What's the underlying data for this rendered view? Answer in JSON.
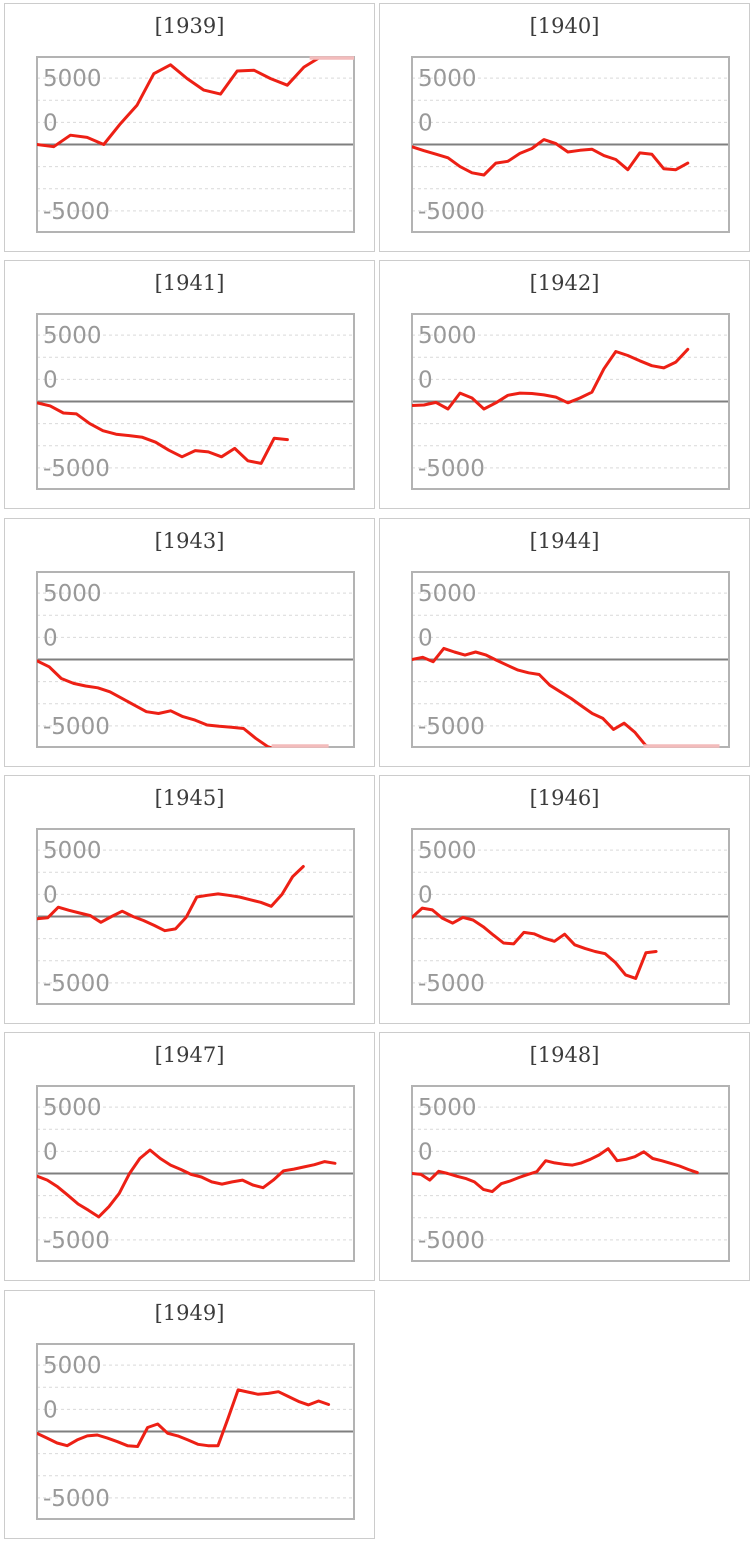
{
  "axis": {
    "tick_labels": [
      "5000",
      "0",
      "-5000"
    ],
    "range_top": 10000,
    "range_bottom": -10000,
    "grid_step": 2500,
    "zero_baseline": true
  },
  "colors": {
    "line": "#ed2015",
    "clipped_line": "#f3bcbc",
    "gridline": "#d9d9d9",
    "zero_line": "#7f7f7f",
    "plot_border": "#b3b3b3",
    "card_border": "#cccccc",
    "tick_label": "#999999",
    "title": "#3b3b3b",
    "background": "#ffffff"
  },
  "chart_data": [
    {
      "type": "line",
      "title": "[1939]",
      "end": 1.0,
      "clips": [
        [
          "top",
          0.86,
          1.0
        ]
      ],
      "values": [
        0,
        -250,
        1050,
        800,
        0,
        2350,
        4450,
        8000,
        9000,
        7450,
        6150,
        5700,
        8300,
        8400,
        7450,
        6700,
        8750,
        9900,
        10300,
        10300
      ]
    },
    {
      "type": "line",
      "title": "[1940]",
      "end": 0.87,
      "clips": [],
      "values": [
        -260,
        -700,
        -1100,
        -1500,
        -2500,
        -3200,
        -3450,
        -2100,
        -1900,
        -1000,
        -450,
        550,
        100,
        -850,
        -650,
        -530,
        -1250,
        -1700,
        -2850,
        -950,
        -1100,
        -2750,
        -2850,
        -2100
      ]
    },
    {
      "type": "line",
      "title": "[1941]",
      "end": 0.79,
      "clips": [],
      "values": [
        -150,
        -500,
        -1300,
        -1400,
        -2500,
        -3300,
        -3700,
        -3850,
        -4050,
        -4600,
        -5500,
        -6250,
        -5550,
        -5700,
        -6250,
        -5300,
        -6700,
        -7000,
        -4150,
        -4300
      ]
    },
    {
      "type": "line",
      "title": "[1942]",
      "end": 0.87,
      "clips": [],
      "values": [
        -450,
        -400,
        -100,
        -850,
        950,
        400,
        -850,
        -150,
        700,
        950,
        900,
        750,
        500,
        -150,
        400,
        1050,
        3700,
        5650,
        5200,
        4600,
        4050,
        3800,
        4450,
        5900
      ]
    },
    {
      "type": "line",
      "title": "[1943]",
      "end": 0.92,
      "clips": [
        [
          "bottom",
          0.74,
          0.92
        ]
      ],
      "values": [
        -150,
        -830,
        -2150,
        -2700,
        -3000,
        -3200,
        -3650,
        -4400,
        -5150,
        -5900,
        -6100,
        -5800,
        -6450,
        -6850,
        -7400,
        -7550,
        -7650,
        -7800,
        -8900,
        -9850,
        -10300,
        -10400,
        -10400,
        -10400,
        -10400
      ]
    },
    {
      "type": "line",
      "title": "[1944]",
      "end": 0.97,
      "clips": [
        [
          "bottom",
          0.73,
          0.97
        ]
      ],
      "values": [
        0,
        250,
        -250,
        1250,
        850,
        500,
        850,
        500,
        -100,
        -650,
        -1200,
        -1500,
        -1700,
        -2900,
        -3650,
        -4400,
        -5250,
        -6100,
        -6650,
        -7900,
        -7200,
        -8200,
        -9650,
        -10300,
        -10400,
        -10400,
        -10400,
        -10400,
        -10400,
        -10400
      ]
    },
    {
      "type": "line",
      "title": "[1945]",
      "end": 0.84,
      "clips": [],
      "values": [
        -250,
        -150,
        1050,
        700,
        400,
        100,
        -650,
        0,
        600,
        0,
        -450,
        -1000,
        -1600,
        -1400,
        -100,
        2200,
        2400,
        2550,
        2400,
        2200,
        1900,
        1600,
        1150,
        2500,
        4500,
        5650
      ]
    },
    {
      "type": "line",
      "title": "[1946]",
      "end": 0.77,
      "clips": [],
      "values": [
        -100,
        950,
        750,
        -200,
        -750,
        -100,
        -400,
        -1150,
        -2100,
        -3000,
        -3100,
        -1800,
        -1950,
        -2450,
        -2800,
        -2000,
        -3200,
        -3600,
        -3950,
        -4200,
        -5200,
        -6600,
        -7000,
        -4100,
        -3950
      ]
    },
    {
      "type": "line",
      "title": "[1947]",
      "end": 0.94,
      "clips": [],
      "values": [
        -300,
        -750,
        -1500,
        -2450,
        -3450,
        -4150,
        -4900,
        -3750,
        -2250,
        0,
        1700,
        2650,
        1700,
        950,
        450,
        -100,
        -400,
        -950,
        -1200,
        -950,
        -750,
        -1300,
        -1600,
        -750,
        300,
        500,
        750,
        1000,
        1350,
        1150
      ]
    },
    {
      "type": "line",
      "title": "[1948]",
      "end": 0.9,
      "clips": [],
      "values": [
        0,
        -100,
        -750,
        250,
        0,
        -300,
        -550,
        -950,
        -1800,
        -2050,
        -1150,
        -850,
        -450,
        -100,
        200,
        1450,
        1200,
        1050,
        950,
        1200,
        1600,
        2100,
        2800,
        1450,
        1600,
        1900,
        2450,
        1700,
        1450,
        1150,
        850,
        450,
        100
      ]
    },
    {
      "type": "line",
      "title": "[1949]",
      "end": 0.92,
      "clips": [],
      "values": [
        -200,
        -750,
        -1300,
        -1600,
        -950,
        -500,
        -400,
        -750,
        -1150,
        -1600,
        -1700,
        450,
        850,
        -200,
        -500,
        -950,
        -1450,
        -1600,
        -1600,
        1500,
        4700,
        4450,
        4200,
        4300,
        4500,
        3950,
        3400,
        3000,
        3450,
        3050
      ]
    }
  ]
}
